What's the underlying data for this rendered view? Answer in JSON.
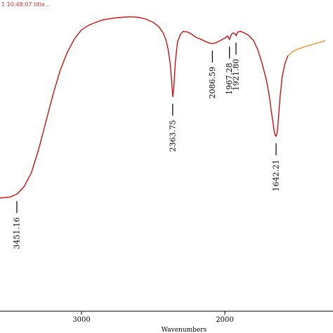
{
  "header_text": "1 10:48:07 title...",
  "chart_data": {
    "type": "line",
    "title": "",
    "xlabel": "Wavenumbers",
    "ylabel": "",
    "xlim": [
      4000,
      1300
    ],
    "ylim": [
      0,
      100
    ],
    "x_ticks": [
      3000,
      2000
    ],
    "grid": false,
    "series": [
      {
        "color": "#cc0000",
        "x": [
          4000,
          3800,
          3600,
          3500,
          3450,
          3400,
          3350,
          3300,
          3250,
          3200,
          3150,
          3100,
          3050,
          3000,
          2950,
          2900,
          2850,
          2800,
          2750,
          2700,
          2650,
          2600,
          2550,
          2500,
          2460,
          2430,
          2410,
          2395,
          2380,
          2370,
          2363,
          2355,
          2345,
          2330,
          2310,
          2290,
          2260,
          2230,
          2200,
          2170,
          2140,
          2110,
          2086,
          2060,
          2030,
          2000,
          1980,
          1967,
          1955,
          1940,
          1930,
          1921,
          1910,
          1890,
          1860,
          1830,
          1800,
          1770,
          1740,
          1710,
          1690,
          1675,
          1662,
          1655,
          1648,
          1642,
          1636,
          1628,
          1615,
          1600,
          1580,
          1560
        ],
        "y": [
          37.0,
          37.0,
          37.1,
          37.5,
          38.5,
          41.0,
          45.5,
          53.0,
          62.0,
          71.0,
          79.0,
          85.0,
          89.5,
          92.5,
          94.0,
          95.0,
          95.8,
          96.2,
          96.5,
          96.7,
          96.8,
          96.6,
          96.0,
          95.0,
          93.5,
          91.5,
          89.0,
          86.0,
          81.0,
          75.0,
          70.5,
          74.0,
          82.0,
          88.5,
          91.0,
          92.0,
          91.8,
          91.0,
          90.0,
          89.5,
          88.8,
          88.2,
          88.0,
          88.3,
          89.0,
          89.8,
          90.5,
          89.3,
          91.0,
          91.5,
          91.2,
          90.6,
          91.8,
          92.0,
          91.4,
          90.5,
          89.0,
          86.0,
          81.5,
          76.0,
          71.0,
          65.5,
          61.5,
          59.0,
          57.8,
          57.5,
          58.5,
          62.0,
          70.0,
          77.0,
          81.5,
          84.0
        ]
      },
      {
        "color": "#e8901e",
        "x": [
          1560,
          1530,
          1500,
          1470,
          1440,
          1410,
          1380,
          1350,
          1320,
          1300
        ],
        "y": [
          84.0,
          85.2,
          86.0,
          86.5,
          87.0,
          87.4,
          87.8,
          88.2,
          88.6,
          89.0
        ]
      }
    ],
    "annotations": [
      {
        "label": "3451.16",
        "x": 3451.16,
        "y": 38.5
      },
      {
        "label": "2363.75",
        "x": 2363.75,
        "y": 70.5
      },
      {
        "label": "2086.59",
        "x": 2086.59,
        "y": 88.0
      },
      {
        "label": "1967.28",
        "x": 1967.28,
        "y": 89.3
      },
      {
        "label": "1921.80",
        "x": 1921.8,
        "y": 90.6
      },
      {
        "label": "1642.21",
        "x": 1642.21,
        "y": 57.5
      }
    ]
  }
}
